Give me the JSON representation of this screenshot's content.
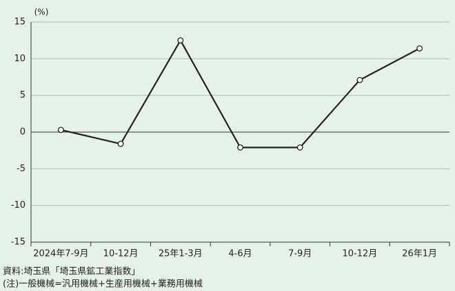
{
  "chart_data": {
    "type": "line",
    "y_label": "(%)",
    "categories": [
      "2024年7-9月",
      "10-12月",
      "25年1-3月",
      "4-6月",
      "7-9月",
      "10-12月",
      "26年1月"
    ],
    "series": [
      {
        "name": "一般機械",
        "color": "#222222",
        "values": [
          0.3,
          -1.6,
          12.5,
          -2.1,
          -2.1,
          7.1,
          11.4
        ]
      }
    ],
    "ylim": [
      -15,
      15
    ],
    "yticks": [
      -15,
      -10,
      -5,
      0,
      5,
      10,
      15
    ],
    "notes": [
      "資料:埼玉県「埼玉県鉱工業指数」",
      "(注)一般機械=汎用機械+生産用機械+業務用機械"
    ]
  }
}
